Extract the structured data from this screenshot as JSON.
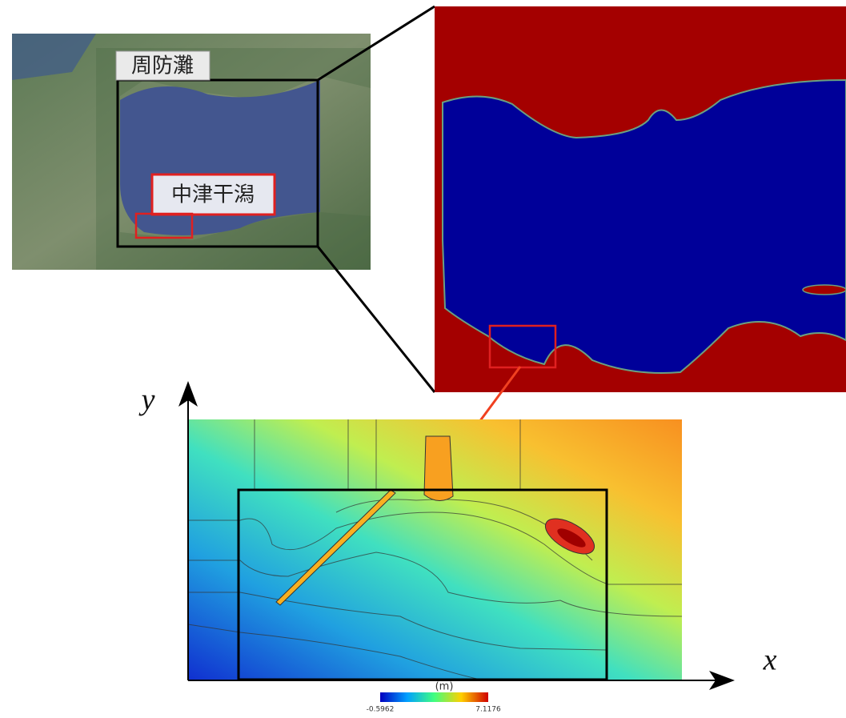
{
  "map": {
    "region_label": "周防灘",
    "site_label": "中津干潟"
  },
  "plot": {
    "y_axis_label": "y",
    "x_axis_label": "x"
  },
  "colorbar": {
    "unit": "(m)",
    "min_label": "-0.5962",
    "max_label": "7.1176"
  }
}
